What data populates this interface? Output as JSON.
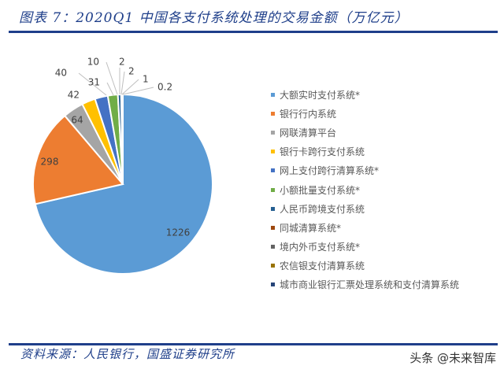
{
  "header": {
    "title": "图表 7：2020Q1 中国各支付系统处理的交易金额（万亿元）"
  },
  "footer": {
    "source": "资料来源：人民银行，国盛证券研究所",
    "watermark": "头条 @未来智库"
  },
  "chart_data": {
    "type": "pie",
    "title": "图表 7：2020Q1 中国各支付系统处理的交易金额（万亿元）",
    "unit": "万亿元",
    "start_angle_deg": 0,
    "direction": "clockwise",
    "legend_position": "right",
    "categories": [
      "大额实时支付系统*",
      "银行行内系统",
      "网联清算平台",
      "银行卡跨行支付系统",
      "网上支付跨行清算系统*",
      "小额批量支付系统*",
      "人民币跨境支付系统",
      "同城清算系统*",
      "境内外币支付系统*",
      "农信银支付清算系统",
      "城市商业银行汇票处理系统和支付清算系统"
    ],
    "values": [
      1226,
      298,
      64,
      42,
      40,
      31,
      10,
      2,
      2,
      1,
      0.2
    ],
    "labels": [
      "1226",
      "298",
      "64",
      "42",
      "40",
      "31",
      "10",
      "2",
      "2",
      "1",
      "0.2"
    ],
    "colors": [
      "#5b9bd5",
      "#ed7d31",
      "#a5a5a5",
      "#ffc000",
      "#4472c4",
      "#70ad47",
      "#255e91",
      "#9e480e",
      "#636363",
      "#997300",
      "#264478"
    ]
  },
  "legend": {
    "items": [
      {
        "label": "大额实时支付系统*",
        "color": "#5b9bd5"
      },
      {
        "label": "银行行内系统",
        "color": "#ed7d31"
      },
      {
        "label": "网联清算平台",
        "color": "#a5a5a5"
      },
      {
        "label": "银行卡跨行支付系统",
        "color": "#ffc000"
      },
      {
        "label": "网上支付跨行清算系统*",
        "color": "#4472c4"
      },
      {
        "label": "小额批量支付系统*",
        "color": "#70ad47"
      },
      {
        "label": "人民币跨境支付系统",
        "color": "#255e91"
      },
      {
        "label": "同城清算系统*",
        "color": "#9e480e"
      },
      {
        "label": "境内外币支付系统*",
        "color": "#636363"
      },
      {
        "label": "农信银支付清算系统",
        "color": "#997300"
      },
      {
        "label": "城市商业银行汇票处理系统和支付清算系统",
        "color": "#264478"
      }
    ]
  }
}
